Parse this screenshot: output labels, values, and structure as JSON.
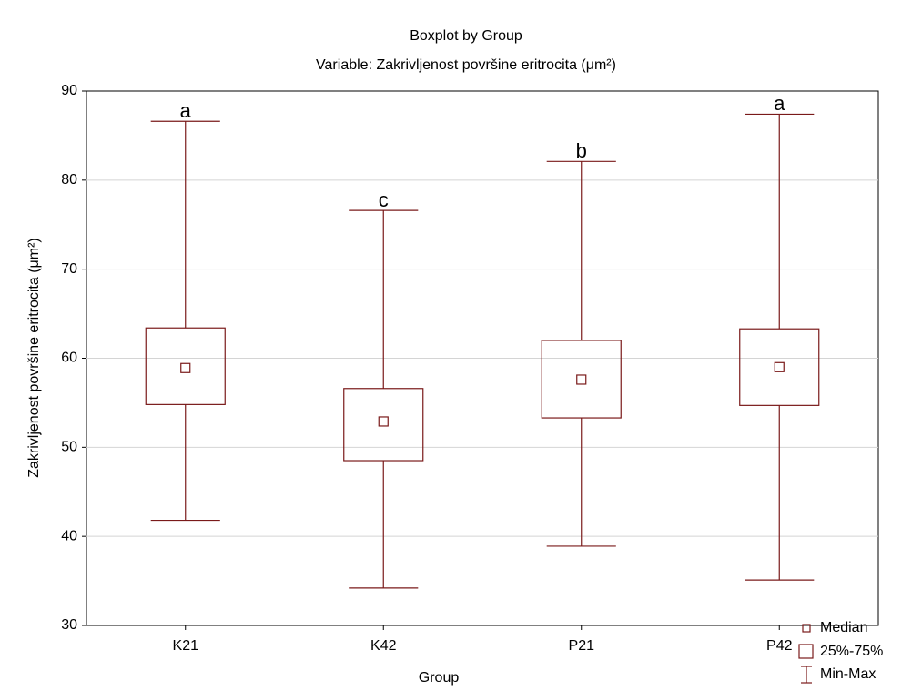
{
  "chart_data": {
    "type": "box",
    "title": "Boxplot by Group",
    "subtitle": "Variable: Zakrivljenost površine eritrocita (μm²)",
    "y_label": "Zakrivljenost površine eritrocita (μm²)",
    "x_label": "Group",
    "categories": [
      "K21",
      "K42",
      "P21",
      "P42"
    ],
    "min": [
      41.8,
      34.2,
      38.9,
      35.1
    ],
    "q1": [
      54.8,
      48.5,
      53.3,
      54.7
    ],
    "median": [
      58.9,
      52.9,
      57.6,
      59.0
    ],
    "q3": [
      63.4,
      56.6,
      62.0,
      63.3
    ],
    "max": [
      86.6,
      76.6,
      82.1,
      87.4
    ],
    "annotations": [
      "a",
      "c",
      "b",
      "a"
    ],
    "color": "#7a1a1a",
    "ylim": [
      30,
      90
    ],
    "yticks": [
      30,
      40,
      50,
      60,
      70,
      80,
      90
    ],
    "grid": true,
    "legend": [
      "Median",
      "25%-75%",
      "Min-Max"
    ],
    "legend_position": "lower right"
  }
}
